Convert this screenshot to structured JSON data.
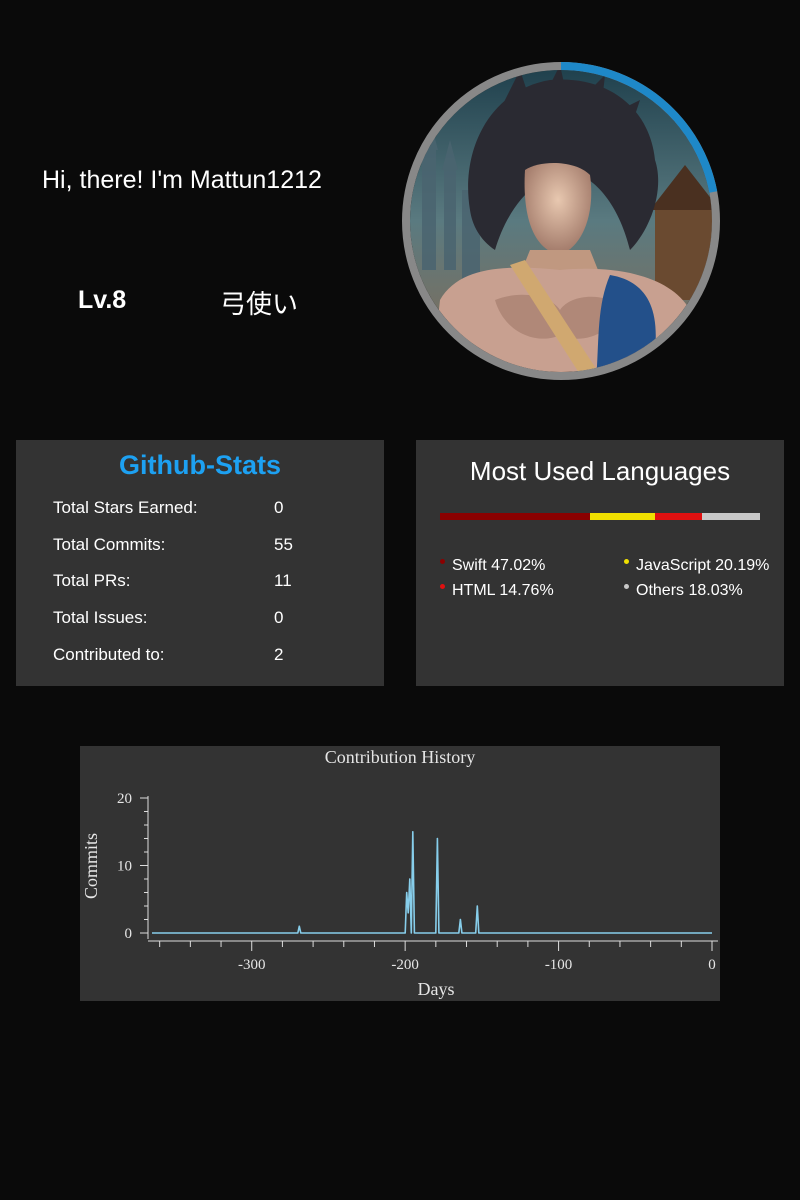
{
  "profile": {
    "greeting": "Hi, there! I'm Mattun1212",
    "level": "Lv.8",
    "job": "弓使い",
    "progress_fraction": 0.22,
    "colors": {
      "progress": "#1e88c8",
      "ring": "#888888"
    }
  },
  "stats": {
    "title": "Github-Stats",
    "title_color": "#1da1f2",
    "rows": [
      {
        "label": "Total Stars Earned:",
        "value": "0"
      },
      {
        "label": "Total Commits:",
        "value": "55"
      },
      {
        "label": "Total PRs:",
        "value": "11"
      },
      {
        "label": "Total Issues:",
        "value": "0"
      },
      {
        "label": "Contributed to:",
        "value": "2"
      }
    ]
  },
  "languages": {
    "title": "Most Used Languages",
    "items": [
      {
        "label": "Swift 47.02%",
        "name": "Swift",
        "percent": 47.02,
        "color": "#8b0000"
      },
      {
        "label": "JavaScript 20.19%",
        "name": "JavaScript",
        "percent": 20.19,
        "color": "#f0e000"
      },
      {
        "label": "HTML 14.76%",
        "name": "HTML",
        "percent": 14.76,
        "color": "#e01010"
      },
      {
        "label": "Others 18.03%",
        "name": "Others",
        "percent": 18.03,
        "color": "#c8c8c8"
      }
    ]
  },
  "chart_data": {
    "type": "line",
    "title": "Contribution History",
    "xlabel": "Days",
    "ylabel": "Commits",
    "xlim": [
      -365,
      0
    ],
    "ylim": [
      0,
      20
    ],
    "xticks": [
      -300,
      -200,
      -100,
      0
    ],
    "yticks": [
      0,
      10,
      20
    ],
    "xtick_labels": [
      "-300",
      "-200",
      "-100",
      "0"
    ],
    "ytick_labels": [
      "0",
      "10",
      "20"
    ],
    "grid": false,
    "line_color": "#87ceeb",
    "points": [
      [
        -365,
        0
      ],
      [
        -270,
        0
      ],
      [
        -269,
        1
      ],
      [
        -268,
        0
      ],
      [
        -200,
        0
      ],
      [
        -199,
        6
      ],
      [
        -198,
        3
      ],
      [
        -197,
        8
      ],
      [
        -196,
        0
      ],
      [
        -195,
        15
      ],
      [
        -194,
        0
      ],
      [
        -180,
        0
      ],
      [
        -179,
        14
      ],
      [
        -178,
        0
      ],
      [
        -165,
        0
      ],
      [
        -164,
        2
      ],
      [
        -163,
        0
      ],
      [
        -154,
        0
      ],
      [
        -153,
        4
      ],
      [
        -152,
        0
      ],
      [
        0,
        0
      ]
    ]
  }
}
